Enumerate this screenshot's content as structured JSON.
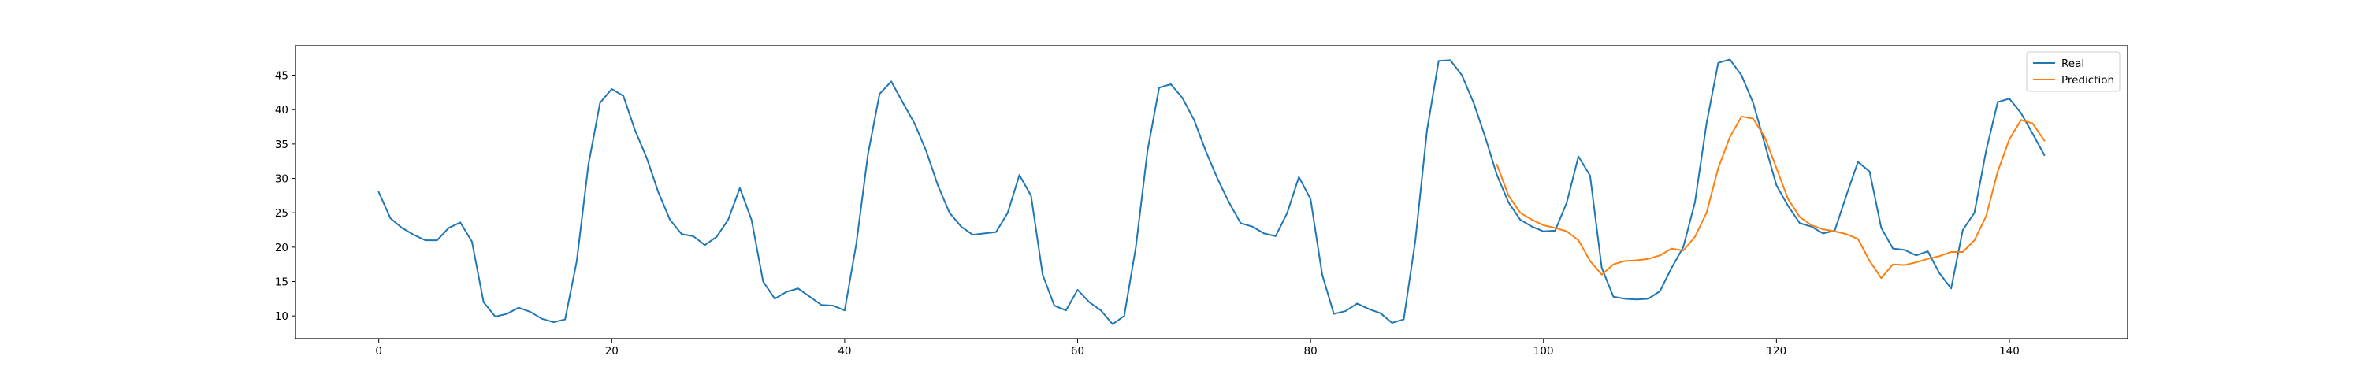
{
  "chart_data": {
    "type": "line",
    "x_ticks": [
      0,
      20,
      40,
      60,
      80,
      100,
      120,
      140
    ],
    "y_ticks": [
      10,
      15,
      20,
      25,
      30,
      35,
      40,
      45
    ],
    "xlim": [
      -7.15,
      150.15
    ],
    "ylim": [
      6.7,
      49.3
    ],
    "grid": false,
    "legend_position": "top-right",
    "series": [
      {
        "name": "Real",
        "color": "#1f77b4",
        "x_start": 0,
        "values": [
          28.0,
          24.2,
          22.8,
          21.8,
          21.0,
          21.0,
          22.8,
          23.6,
          20.8,
          12.0,
          9.9,
          10.3,
          11.2,
          10.6,
          9.6,
          9.1,
          9.5,
          18.0,
          32.0,
          41.0,
          43.0,
          42.0,
          37.0,
          33.0,
          28.0,
          24.0,
          21.9,
          21.6,
          20.3,
          21.5,
          24.0,
          28.6,
          24.0,
          15.0,
          12.5,
          13.5,
          14.0,
          12.8,
          11.6,
          11.5,
          10.8,
          20.5,
          33.5,
          42.3,
          44.1,
          41.0,
          38.0,
          34.0,
          29.0,
          25.0,
          23.0,
          21.8,
          22.0,
          22.2,
          25.0,
          30.5,
          27.5,
          16.0,
          11.5,
          10.8,
          13.8,
          12.0,
          10.8,
          8.8,
          10.0,
          20.0,
          34.0,
          43.2,
          43.7,
          41.7,
          38.5,
          34.0,
          30.0,
          26.5,
          23.5,
          23.0,
          22.0,
          21.6,
          25.0,
          30.2,
          27.0,
          16.0,
          10.3,
          10.7,
          11.8,
          11.0,
          10.4,
          9.0,
          9.5,
          21.0,
          37.0,
          47.1,
          47.2,
          45.0,
          41.0,
          36.0,
          30.5,
          26.5,
          24.0,
          23.0,
          22.3,
          22.4,
          26.5,
          33.2,
          30.4,
          17.0,
          12.8,
          12.5,
          12.4,
          12.5,
          13.6,
          17.0,
          20.0,
          26.5,
          38.0,
          46.8,
          47.3,
          45.0,
          41.0,
          35.0,
          29.0,
          26.0,
          23.5,
          23.0,
          22.0,
          22.4,
          27.5,
          32.4,
          31.0,
          22.8,
          19.8,
          19.6,
          18.8,
          19.4,
          16.2,
          14.0,
          22.5,
          25.0,
          34.0,
          41.1,
          41.6,
          39.5,
          36.5,
          33.4
        ]
      },
      {
        "name": "Prediction",
        "color": "#ff7f0e",
        "x_start": 96,
        "values": [
          32.0,
          27.5,
          25.0,
          24.0,
          23.2,
          22.8,
          22.3,
          21.0,
          18.0,
          16.0,
          17.5,
          18.0,
          18.1,
          18.3,
          18.8,
          19.8,
          19.5,
          21.5,
          25.0,
          31.5,
          36.0,
          39.0,
          38.7,
          36.0,
          31.5,
          27.0,
          24.4,
          23.2,
          22.6,
          22.3,
          21.9,
          21.2,
          18.0,
          15.5,
          17.5,
          17.4,
          17.8,
          18.3,
          18.7,
          19.3,
          19.3,
          21.0,
          24.5,
          31.0,
          35.7,
          38.5,
          38.0,
          35.5
        ]
      }
    ]
  }
}
